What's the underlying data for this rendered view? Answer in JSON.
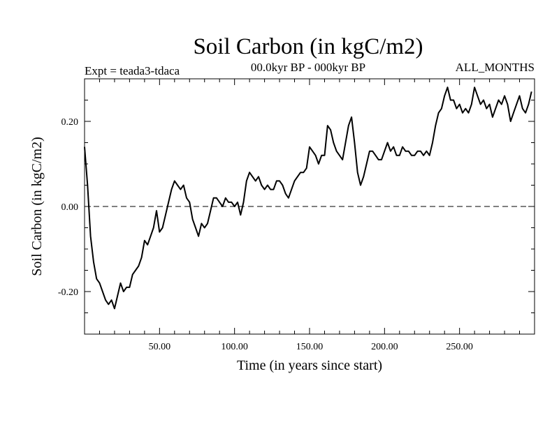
{
  "chart_data": {
    "type": "line",
    "title": "Soil Carbon (in kgC/m2)",
    "subtitle_left": "Expt = teada3-tdaca",
    "subtitle_center": "00.0kyr BP - 000kyr BP",
    "subtitle_right": "ALL_MONTHS",
    "xlabel": "Time (in years since start)",
    "ylabel": "Soil Carbon (in kgC/m2)",
    "xlim": [
      0,
      300
    ],
    "ylim": [
      -0.3,
      0.3
    ],
    "x_ticks": [
      50,
      100,
      150,
      200,
      250
    ],
    "x_tick_labels": [
      "50.00",
      "100.00",
      "150.00",
      "200.00",
      "250.00"
    ],
    "y_ticks": [
      -0.2,
      0.0,
      0.2
    ],
    "y_tick_labels": [
      "-0.20",
      "0.00",
      "0.20"
    ],
    "reference_line": {
      "y": 0.0,
      "style": "dashed"
    },
    "series": [
      {
        "name": "Soil Carbon",
        "x": [
          0,
          2,
          4,
          6,
          8,
          10,
          12,
          14,
          16,
          18,
          20,
          22,
          24,
          26,
          28,
          30,
          32,
          34,
          36,
          38,
          40,
          42,
          44,
          46,
          48,
          50,
          52,
          54,
          56,
          58,
          60,
          62,
          64,
          66,
          68,
          70,
          72,
          74,
          76,
          78,
          80,
          82,
          84,
          86,
          88,
          90,
          92,
          94,
          96,
          98,
          100,
          102,
          104,
          106,
          108,
          110,
          112,
          114,
          116,
          118,
          120,
          122,
          124,
          126,
          128,
          130,
          132,
          134,
          136,
          138,
          140,
          142,
          144,
          146,
          148,
          150,
          152,
          154,
          156,
          158,
          160,
          162,
          164,
          166,
          168,
          170,
          172,
          174,
          176,
          178,
          180,
          182,
          184,
          186,
          188,
          190,
          192,
          194,
          196,
          198,
          200,
          202,
          204,
          206,
          208,
          210,
          212,
          214,
          216,
          218,
          220,
          222,
          224,
          226,
          228,
          230,
          232,
          234,
          236,
          238,
          240,
          242,
          244,
          246,
          248,
          250,
          252,
          254,
          256,
          258,
          260,
          262,
          264,
          266,
          268,
          270,
          272,
          274,
          276,
          278,
          280,
          282,
          284,
          286,
          288,
          290,
          292,
          294,
          296,
          298
        ],
        "y": [
          0.14,
          0.05,
          -0.07,
          -0.13,
          -0.17,
          -0.18,
          -0.2,
          -0.22,
          -0.23,
          -0.22,
          -0.24,
          -0.21,
          -0.18,
          -0.2,
          -0.19,
          -0.19,
          -0.16,
          -0.15,
          -0.14,
          -0.12,
          -0.08,
          -0.09,
          -0.07,
          -0.05,
          -0.01,
          -0.06,
          -0.05,
          -0.02,
          0.01,
          0.04,
          0.06,
          0.05,
          0.04,
          0.05,
          0.02,
          0.01,
          -0.03,
          -0.05,
          -0.07,
          -0.04,
          -0.05,
          -0.04,
          -0.01,
          0.02,
          0.02,
          0.01,
          0.0,
          0.02,
          0.01,
          0.01,
          0.0,
          0.01,
          -0.02,
          0.01,
          0.06,
          0.08,
          0.07,
          0.06,
          0.07,
          0.05,
          0.04,
          0.05,
          0.04,
          0.04,
          0.06,
          0.06,
          0.05,
          0.03,
          0.02,
          0.04,
          0.06,
          0.07,
          0.08,
          0.08,
          0.09,
          0.14,
          0.13,
          0.12,
          0.1,
          0.12,
          0.12,
          0.19,
          0.18,
          0.15,
          0.13,
          0.12,
          0.11,
          0.15,
          0.19,
          0.21,
          0.15,
          0.08,
          0.05,
          0.07,
          0.1,
          0.13,
          0.13,
          0.12,
          0.11,
          0.11,
          0.13,
          0.15,
          0.13,
          0.14,
          0.12,
          0.12,
          0.14,
          0.13,
          0.13,
          0.12,
          0.12,
          0.13,
          0.13,
          0.12,
          0.13,
          0.12,
          0.15,
          0.19,
          0.22,
          0.23,
          0.26,
          0.28,
          0.25,
          0.25,
          0.23,
          0.24,
          0.22,
          0.23,
          0.22,
          0.24,
          0.28,
          0.26,
          0.24,
          0.25,
          0.23,
          0.24,
          0.21,
          0.23,
          0.25,
          0.24,
          0.26,
          0.24,
          0.2,
          0.22,
          0.24,
          0.26,
          0.23,
          0.22,
          0.24,
          0.27
        ]
      }
    ]
  }
}
